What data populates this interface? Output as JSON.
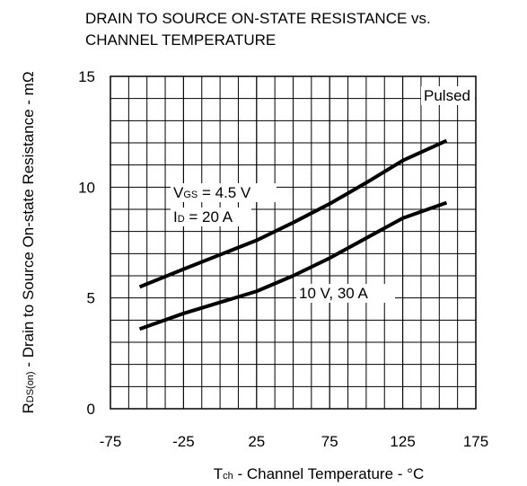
{
  "chart_data": {
    "type": "line",
    "title": [
      "DRAIN TO SOURCE ON-STATE RESISTANCE vs.",
      "CHANNEL TEMPERATURE"
    ],
    "xlabel": {
      "main": "T",
      "sub": "ch",
      "rest": " - Channel Temperature - °C"
    },
    "ylabel": {
      "main": "R",
      "sub": "DS(on)",
      "rest": " - Drain to Source On-state Resistance - mΩ"
    },
    "xlim": [
      -75,
      175
    ],
    "xticks": [
      -75,
      -25,
      25,
      75,
      125,
      175
    ],
    "ylim": [
      0,
      15
    ],
    "yticks": [
      0,
      5,
      10,
      15
    ],
    "grid": true,
    "xgrid": [
      -62.5,
      -50,
      -37.5,
      -25,
      -12.5,
      0,
      12.5,
      25,
      37.5,
      50,
      62.5,
      75,
      87.5,
      100,
      112.5,
      125,
      137.5,
      150,
      162.5
    ],
    "ygrid": [
      1,
      2,
      3,
      4,
      6,
      7,
      8,
      9,
      11,
      12,
      13,
      14
    ],
    "x": [
      -55,
      -25,
      0,
      25,
      50,
      75,
      100,
      125,
      155
    ],
    "series": [
      {
        "color": "#000000",
        "values": [
          5.5,
          6.3,
          6.95,
          7.6,
          8.4,
          9.25,
          10.2,
          11.2,
          12.1
        ]
      },
      {
        "color": "#000000",
        "values": [
          3.6,
          4.3,
          4.8,
          5.3,
          6.0,
          6.8,
          7.7,
          8.6,
          9.3
        ]
      }
    ],
    "annotations": [
      {
        "main": "Pulsed"
      },
      {
        "main": "V",
        "sub": "GS",
        "rest": " = 4.5 V"
      },
      {
        "main": "I",
        "sub": "D",
        "rest": " = 20 A"
      },
      {
        "main": "10 V, 30 A"
      }
    ]
  }
}
